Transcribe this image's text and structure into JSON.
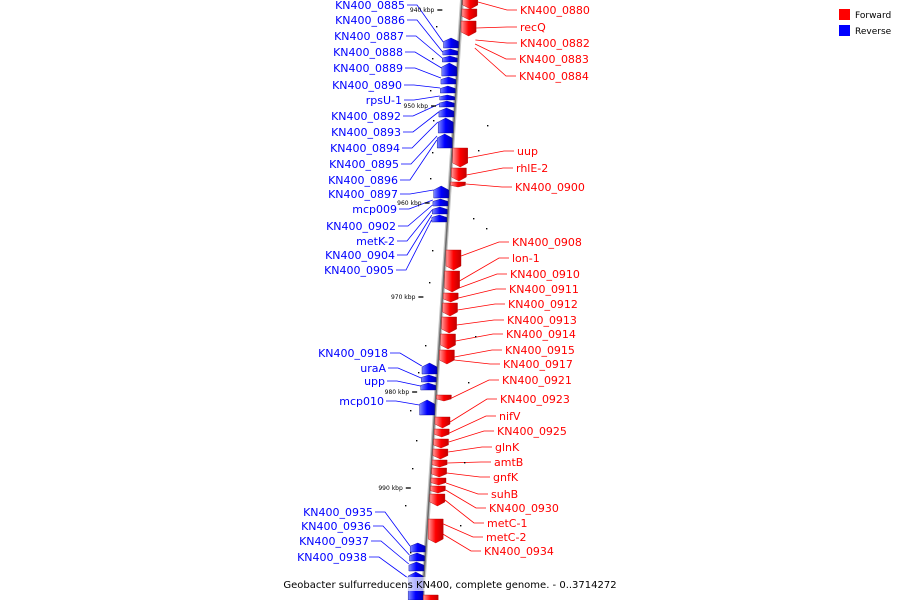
{
  "caption": "Geobacter sulfurreducens KN400, complete genome. - 0..3714272",
  "legend": [
    {
      "label": "Forward",
      "color": "#ff0000"
    },
    {
      "label": "Reverse",
      "color": "#0000ff"
    }
  ],
  "ticks": [
    "940 kbp",
    "950 kbp",
    "960 kbp",
    "970 kbp",
    "980 kbp",
    "990 kbp"
  ],
  "forward_genes": [
    "KN400_0880",
    "recQ",
    "KN400_0882",
    "KN400_0883",
    "KN400_0884",
    "uup",
    "rhlE-2",
    "KN400_0900",
    "KN400_0908",
    "lon-1",
    "KN400_0910",
    "KN400_0911",
    "KN400_0912",
    "KN400_0913",
    "KN400_0914",
    "KN400_0915",
    "KN400_0917",
    "KN400_0921",
    "KN400_0923",
    "nifV",
    "KN400_0925",
    "glnK",
    "amtB",
    "gnfK",
    "suhB",
    "KN400_0930",
    "metC-1",
    "metC-2",
    "KN400_0934"
  ],
  "reverse_genes": [
    "KN400_0885",
    "KN400_0886",
    "KN400_0887",
    "KN400_0888",
    "KN400_0889",
    "KN400_0890",
    "rpsU-1",
    "KN400_0892",
    "KN400_0893",
    "KN400_0894",
    "KN400_0895",
    "KN400_0896",
    "KN400_0897",
    "mcp009",
    "KN400_0902",
    "metK-2",
    "KN400_0904",
    "KN400_0905",
    "KN400_0918",
    "uraA",
    "upp",
    "mcp010",
    "KN400_0935",
    "KN400_0936",
    "KN400_0937",
    "KN400_0938"
  ]
}
